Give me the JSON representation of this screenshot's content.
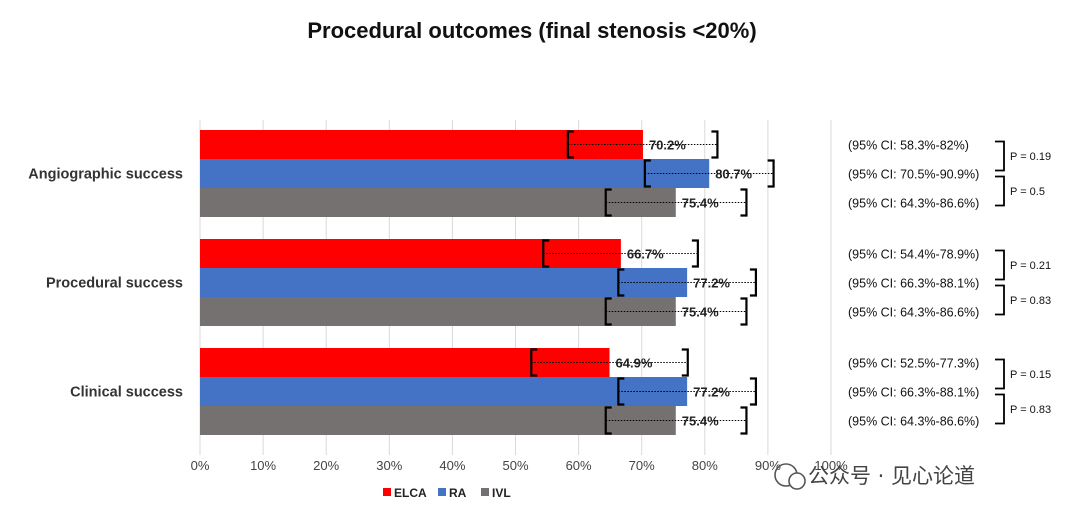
{
  "chart_data": {
    "type": "bar",
    "orientation": "horizontal",
    "title": "Procedural outcomes (final stenosis <20%)",
    "categories": [
      "Angiographic success",
      "Procedural success",
      "Clinical success"
    ],
    "series": [
      {
        "name": "ELCA",
        "color": "#ff0000",
        "values": [
          70.2,
          66.7,
          64.9
        ],
        "ci_low": [
          58.3,
          54.4,
          52.5
        ],
        "ci_high": [
          82,
          78.9,
          77.3
        ],
        "labels": [
          "70.2%",
          "66.7%",
          "64.9%"
        ],
        "ci_labels": [
          "(95% CI: 58.3%-82%)",
          "(95% CI: 54.4%-78.9%)",
          "(95% CI: 52.5%-77.3%)"
        ]
      },
      {
        "name": "RA",
        "color": "#4472c4",
        "values": [
          80.7,
          77.2,
          77.2
        ],
        "ci_low": [
          70.5,
          66.3,
          66.3
        ],
        "ci_high": [
          90.9,
          88.1,
          88.1
        ],
        "labels": [
          "80.7%",
          "77.2%",
          "77.2%"
        ],
        "ci_labels": [
          "(95% CI: 70.5%-90.9%)",
          "(95% CI: 66.3%-88.1%)",
          "(95% CI: 66.3%-88.1%)"
        ]
      },
      {
        "name": "IVL",
        "color": "#767171",
        "values": [
          75.4,
          75.4,
          75.4
        ],
        "ci_low": [
          64.3,
          64.3,
          64.3
        ],
        "ci_high": [
          86.6,
          86.6,
          86.6
        ],
        "labels": [
          "75.4%",
          "75.4%",
          "75.4%"
        ],
        "ci_labels": [
          "(95% CI: 64.3%-86.6%)",
          "(95% CI: 64.3%-86.6%)",
          "(95% CI: 64.3%-86.6%)"
        ]
      }
    ],
    "p_values": [
      {
        "top": "P = 0.19",
        "bottom": "P = 0.5"
      },
      {
        "top": "P = 0.21",
        "bottom": "P = 0.83"
      },
      {
        "top": "P = 0.15",
        "bottom": "P = 0.83"
      }
    ],
    "xlim": [
      0,
      100
    ],
    "xticks": [
      "0%",
      "10%",
      "20%",
      "30%",
      "40%",
      "50%",
      "60%",
      "70%",
      "80%",
      "90%",
      "100%"
    ],
    "grid": true,
    "legend": "bottom-center"
  },
  "watermark": "公众号 · 见心论道"
}
